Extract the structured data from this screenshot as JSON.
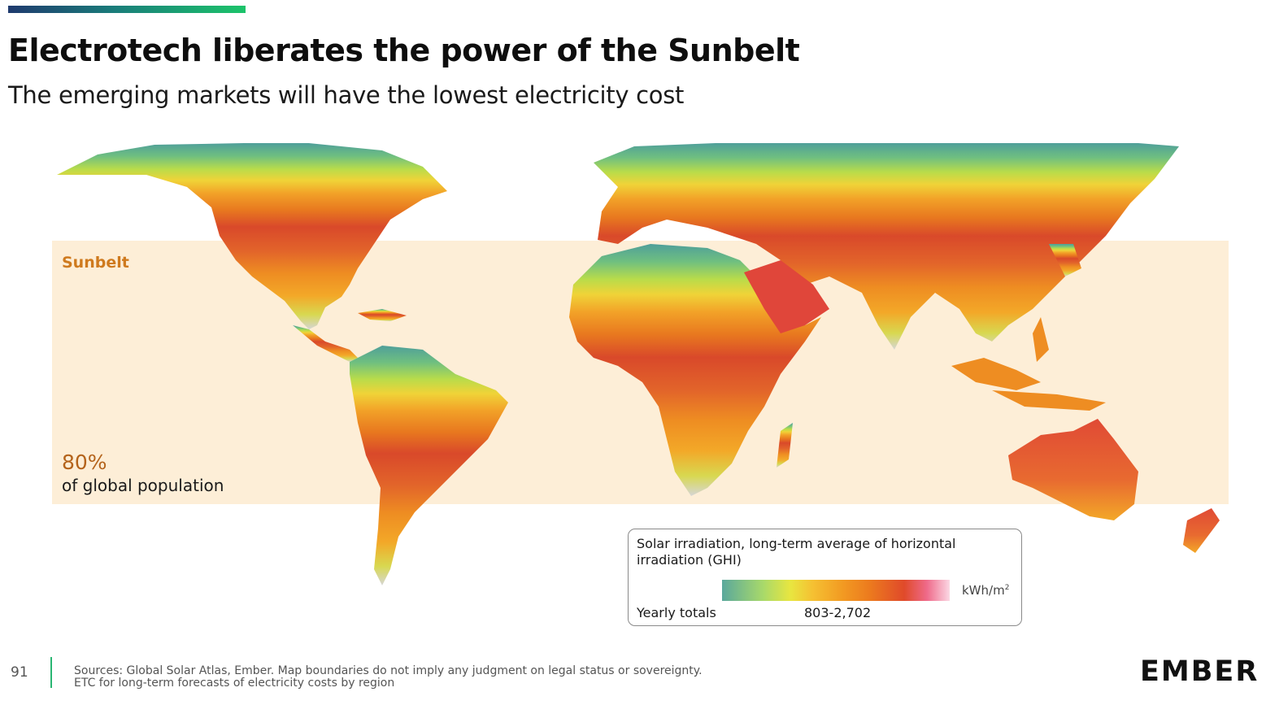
{
  "header": {
    "title": "Electrotech liberates the power of the Sunbelt",
    "subtitle": "The emerging markets will have the lowest electricity cost"
  },
  "sunbelt": {
    "label": "Sunbelt",
    "population_pct": "80%",
    "population_text": "of global population"
  },
  "legend": {
    "title": "Solar irradiation, long-term average of horizontal irradiation (GHI)",
    "unit": "kWh/m",
    "unit_sup": "2",
    "yearly_label": "Yearly totals",
    "range": "803-2,702"
  },
  "footer": {
    "page_number": "91",
    "sources_line1": "Sources: Global Solar Atlas, Ember. Map boundaries do not imply any judgment on legal status or sovereignty.",
    "sources_line2": "ETC for long-term forecasts of electricity costs by region",
    "logo": "EMBER"
  },
  "colors": {
    "accent_green": "#2bb673",
    "sunbelt_band": "#fdeed7",
    "sunbelt_label": "#cf7a1e"
  }
}
